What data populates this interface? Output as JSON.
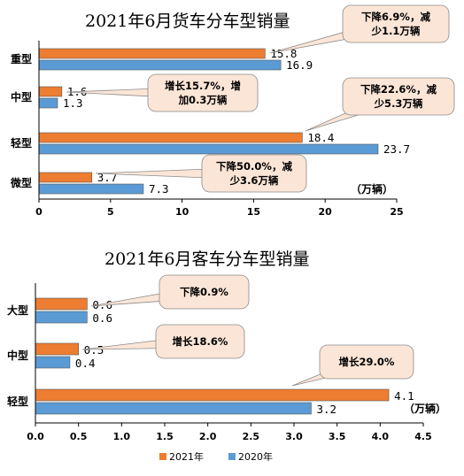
{
  "colors": {
    "y2021": "#ED7D31",
    "y2020": "#5B9BD5",
    "callout_fill": "#FBE5D6",
    "callout_stroke": "#8B8B8B"
  },
  "chart_data": [
    {
      "type": "bar",
      "orientation": "horizontal",
      "title": "2021年6月货车分车型销量",
      "categories": [
        "重型",
        "中型",
        "轻型",
        "微型"
      ],
      "series": [
        {
          "name": "2021年",
          "values": [
            15.8,
            1.6,
            18.4,
            3.7
          ],
          "labels": [
            "15.8",
            "1.6",
            "18.4",
            "3.7"
          ]
        },
        {
          "name": "2020年",
          "values": [
            16.9,
            1.3,
            23.7,
            7.3
          ],
          "labels": [
            "16.9",
            "1.3",
            "23.7",
            "7.3"
          ]
        }
      ],
      "xlim": [
        0,
        25
      ],
      "xticks": [
        "0",
        "5",
        "10",
        "15",
        "20",
        "25"
      ],
      "unit": "（万辆）",
      "grid": false,
      "annotations": [
        {
          "category": "重型",
          "lines": [
            "下降6.9%，减",
            "少1.1万辆"
          ]
        },
        {
          "category": "中型",
          "lines": [
            "增长15.7%，增",
            "加0.3万辆"
          ]
        },
        {
          "category": "轻型",
          "lines": [
            "下降22.6%，减",
            "少5.3万辆"
          ]
        },
        {
          "category": "微型",
          "lines": [
            "下降50.0%，减",
            "少3.6万辆"
          ]
        }
      ]
    },
    {
      "type": "bar",
      "orientation": "horizontal",
      "title": "2021年6月客车分车型销量",
      "categories": [
        "大型",
        "中型",
        "轻型"
      ],
      "series": [
        {
          "name": "2021年",
          "values": [
            0.6,
            0.5,
            4.1
          ],
          "labels": [
            "0.6",
            "0.5",
            "4.1"
          ]
        },
        {
          "name": "2020年",
          "values": [
            0.6,
            0.4,
            3.2
          ],
          "labels": [
            "0.6",
            "0.4",
            "3.2"
          ]
        }
      ],
      "xlim": [
        0,
        4.5
      ],
      "xticks": [
        "0.0",
        "0.5",
        "1.0",
        "1.5",
        "2.0",
        "2.5",
        "3.0",
        "3.5",
        "4.0",
        "4.5"
      ],
      "unit": "（万辆）",
      "grid": false,
      "legend": {
        "position": "bottom",
        "entries": [
          "2021年",
          "2020年"
        ]
      },
      "annotations": [
        {
          "category": "大型",
          "lines": [
            "下降0.9%"
          ]
        },
        {
          "category": "中型",
          "lines": [
            "增长18.6%"
          ]
        },
        {
          "category": "轻型",
          "lines": [
            "增长29.0%"
          ]
        }
      ]
    }
  ]
}
